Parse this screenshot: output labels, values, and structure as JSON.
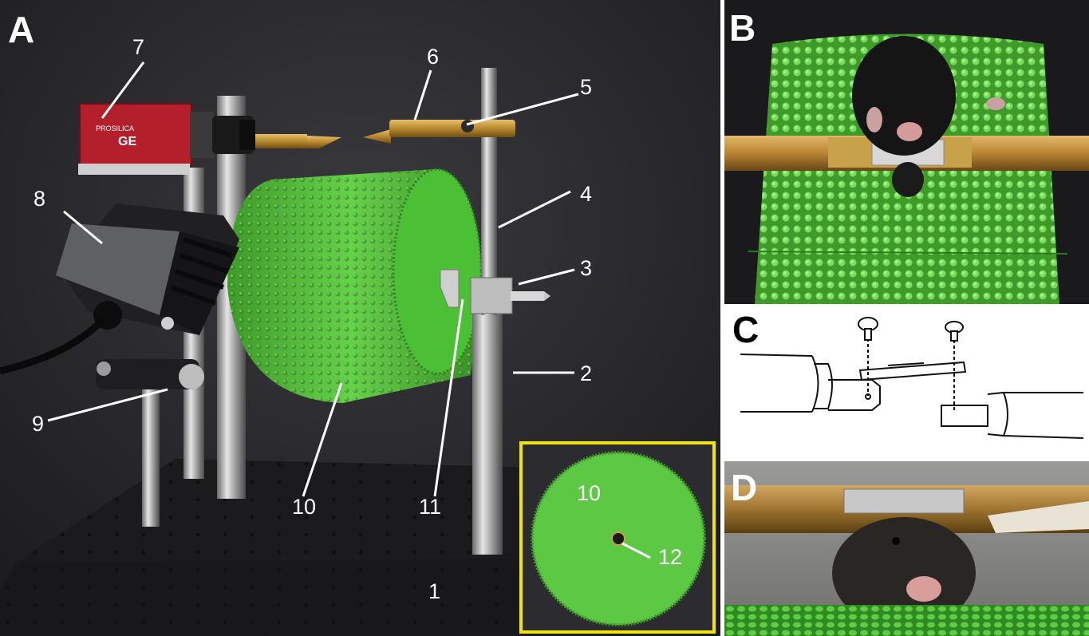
{
  "panels": {
    "a": {
      "letter": "A"
    },
    "b": {
      "letter": "B"
    },
    "c": {
      "letter": "C"
    },
    "d": {
      "letter": "D"
    }
  },
  "callouts": {
    "n1": "1",
    "n2": "2",
    "n3": "3",
    "n4": "4",
    "n5": "5",
    "n6": "6",
    "n7": "7",
    "n8": "8",
    "n9": "9",
    "n10": "10",
    "n11": "11",
    "inset_n10": "10",
    "inset_n12": "12"
  },
  "camera_label": {
    "line1": "PROSILICA",
    "line2": "GE"
  },
  "colors": {
    "backdrop": "#2b2b2f",
    "wheel_green": "#55c23c",
    "inset_border": "#f2e600",
    "brass": "#b8892e",
    "camera_red": "#b3202c"
  }
}
